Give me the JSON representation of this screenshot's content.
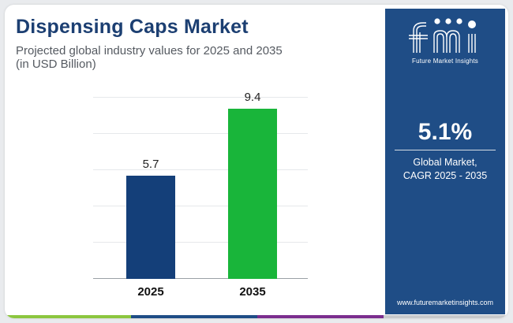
{
  "header": {
    "title": "Dispensing Caps Market",
    "subtitle_line1": "Projected global industry values for 2025 and 2035",
    "subtitle_line2": "(in USD Billion)"
  },
  "chart_data": {
    "type": "bar",
    "categories": [
      "2025",
      "2035"
    ],
    "values": [
      5.7,
      9.4
    ],
    "value_labels": [
      "5.7",
      "9.4"
    ],
    "bar_colors": [
      "#143f79",
      "#19b53a"
    ],
    "ylim": [
      0,
      10
    ],
    "grid": true,
    "title": "Dispensing Caps Market",
    "xlabel": "",
    "ylabel": ""
  },
  "side_panel": {
    "logo_text": "fmi",
    "logo_subtext": "Future Market Insights",
    "cagr_value": "5.1%",
    "cagr_label_line1": "Global Market,",
    "cagr_label_line2": "CAGR 2025 - 2035",
    "url": "www.futuremarketinsights.com",
    "background_color": "#1f4d86"
  },
  "bottom_strip_colors": [
    "#8cc63f",
    "#1f4d86",
    "#7b2d8e",
    "#c7c9cc"
  ]
}
